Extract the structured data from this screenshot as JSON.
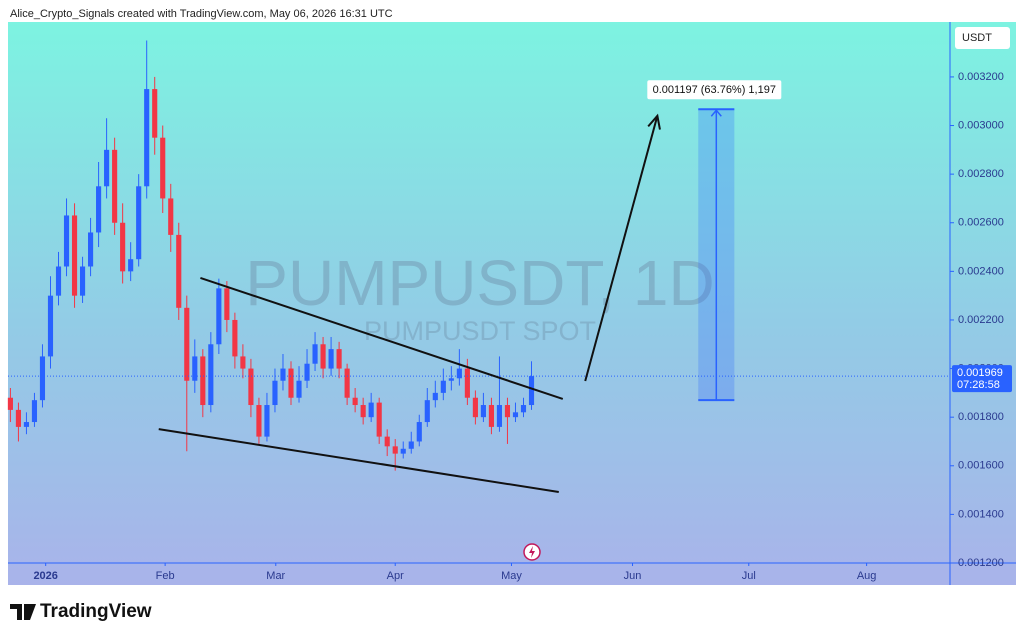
{
  "header": "Alice_Crypto_Signals created with TradingView.com, May 06, 2026 16:31 UTC",
  "footer": {
    "logo": "TradingView"
  },
  "chart_data": {
    "type": "candlestick",
    "title": "PUMPUSDT, 1D",
    "subtitle": "PUMPUSDT SPOT",
    "y_axis_label": "USDT",
    "open": [
      0.00188,
      0.00183,
      0.00176,
      0.00178,
      0.00187,
      0.00205,
      0.0023,
      0.00242,
      0.00263,
      0.0023,
      0.00242,
      0.00256,
      0.00275,
      0.0029,
      0.0026,
      0.0024,
      0.00245,
      0.00275,
      0.00315,
      0.00295,
      0.0027,
      0.00255,
      0.00225,
      0.00195,
      0.00205,
      0.00185,
      0.0021,
      0.00233,
      0.0022,
      0.00205,
      0.002,
      0.00185,
      0.00172,
      0.00185,
      0.00195,
      0.002,
      0.00188,
      0.00195,
      0.00202,
      0.0021,
      0.002,
      0.00208,
      0.002,
      0.00188,
      0.00185,
      0.0018,
      0.00186,
      0.00172,
      0.00168,
      0.00165,
      0.00167,
      0.0017,
      0.00178,
      0.00187,
      0.0019,
      0.00195,
      0.00196,
      0.002,
      0.00188,
      0.0018,
      0.00185,
      0.00176,
      0.00185,
      0.0018,
      0.00182,
      0.00185
    ],
    "high": [
      0.00192,
      0.00186,
      0.00182,
      0.0019,
      0.0021,
      0.00238,
      0.00248,
      0.0027,
      0.00268,
      0.00246,
      0.00262,
      0.00285,
      0.00303,
      0.00295,
      0.00268,
      0.00252,
      0.0028,
      0.00335,
      0.0032,
      0.003,
      0.00276,
      0.0026,
      0.0023,
      0.00212,
      0.00208,
      0.00215,
      0.00237,
      0.00236,
      0.00223,
      0.0021,
      0.00204,
      0.00188,
      0.0019,
      0.002,
      0.00206,
      0.00203,
      0.00201,
      0.00208,
      0.00215,
      0.00213,
      0.00213,
      0.00211,
      0.00202,
      0.00192,
      0.00188,
      0.0019,
      0.00188,
      0.00175,
      0.00171,
      0.0017,
      0.00174,
      0.00181,
      0.00192,
      0.00195,
      0.002,
      0.00201,
      0.00208,
      0.00204,
      0.00191,
      0.0019,
      0.00188,
      0.00205,
      0.00188,
      0.00186,
      0.00188,
      0.00203
    ],
    "low": [
      0.00178,
      0.0017,
      0.00173,
      0.00176,
      0.00184,
      0.002,
      0.00226,
      0.00238,
      0.00225,
      0.00227,
      0.00238,
      0.0025,
      0.0027,
      0.00255,
      0.00235,
      0.00236,
      0.00242,
      0.0027,
      0.00288,
      0.00264,
      0.00248,
      0.0022,
      0.00166,
      0.0019,
      0.0018,
      0.00182,
      0.00206,
      0.00215,
      0.002,
      0.00196,
      0.0018,
      0.00169,
      0.0017,
      0.00182,
      0.00191,
      0.00185,
      0.00186,
      0.00192,
      0.00199,
      0.00196,
      0.00197,
      0.00196,
      0.00185,
      0.00182,
      0.00177,
      0.00178,
      0.00169,
      0.00164,
      0.00158,
      0.00163,
      0.00165,
      0.00168,
      0.00176,
      0.00184,
      0.00187,
      0.00191,
      0.00193,
      0.00185,
      0.00177,
      0.00178,
      0.00173,
      0.00174,
      0.00169,
      0.00178,
      0.0018,
      0.00183
    ],
    "close": [
      0.00183,
      0.00176,
      0.00178,
      0.00187,
      0.00205,
      0.0023,
      0.00242,
      0.00263,
      0.0023,
      0.00242,
      0.00256,
      0.00275,
      0.0029,
      0.0026,
      0.0024,
      0.00245,
      0.00275,
      0.00315,
      0.00295,
      0.0027,
      0.00255,
      0.00225,
      0.00195,
      0.00205,
      0.00185,
      0.0021,
      0.00233,
      0.0022,
      0.00205,
      0.002,
      0.00185,
      0.00172,
      0.00185,
      0.00195,
      0.002,
      0.00188,
      0.00195,
      0.00202,
      0.0021,
      0.002,
      0.00208,
      0.002,
      0.00188,
      0.00185,
      0.0018,
      0.00186,
      0.00172,
      0.00168,
      0.00165,
      0.00167,
      0.0017,
      0.00178,
      0.00187,
      0.0019,
      0.00195,
      0.00196,
      0.002,
      0.00188,
      0.0018,
      0.00185,
      0.00176,
      0.00185,
      0.0018,
      0.00182,
      0.00185,
      0.001969
    ],
    "up_color": "#2962ff",
    "down_color": "#f23645",
    "xlim": [
      -0.3,
      117.2
    ],
    "xticks": [
      {
        "value": 4.4,
        "label": "2026"
      },
      {
        "value": 19.3,
        "label": "Feb"
      },
      {
        "value": 33.1,
        "label": "Mar"
      },
      {
        "value": 48.0,
        "label": "Apr"
      },
      {
        "value": 62.5,
        "label": "May"
      },
      {
        "value": 77.6,
        "label": "Jun"
      },
      {
        "value": 92.1,
        "label": "Jul"
      },
      {
        "value": 106.8,
        "label": "Aug"
      }
    ],
    "ylim": [
      0.0012,
      0.003426
    ],
    "yticks": [
      {
        "value": 0.0012,
        "label": "0.001200"
      },
      {
        "value": 0.0014,
        "label": "0.001400"
      },
      {
        "value": 0.0016,
        "label": "0.001600"
      },
      {
        "value": 0.0018,
        "label": "0.001800"
      },
      {
        "value": 0.002,
        "label": "0.002000"
      },
      {
        "value": 0.0022,
        "label": "0.002200"
      },
      {
        "value": 0.0024,
        "label": "0.002400"
      },
      {
        "value": 0.0026,
        "label": "0.002600"
      },
      {
        "value": 0.0028,
        "label": "0.002800"
      },
      {
        "value": 0.003,
        "label": "0.003000"
      },
      {
        "value": 0.0032,
        "label": "0.003200"
      }
    ],
    "last_price": {
      "value": 0.001969,
      "label": "0.001969"
    },
    "countdown": "07:28:58",
    "trend_lines": [
      {
        "x": [
          23.7,
          68.9
        ],
        "y": [
          0.002373,
          0.001875
        ]
      },
      {
        "x": [
          18.5,
          68.4
        ],
        "y": [
          0.001751,
          0.001492
        ]
      }
    ],
    "arrow": {
      "x": [
        71.7,
        80.7
      ],
      "y": [
        0.001949,
        0.00304
      ]
    },
    "price_range": {
      "x": [
        85.8,
        90.3
      ],
      "y": [
        0.00187,
        0.003067
      ],
      "label": "0.001197 (63.76%) 1,197"
    }
  }
}
